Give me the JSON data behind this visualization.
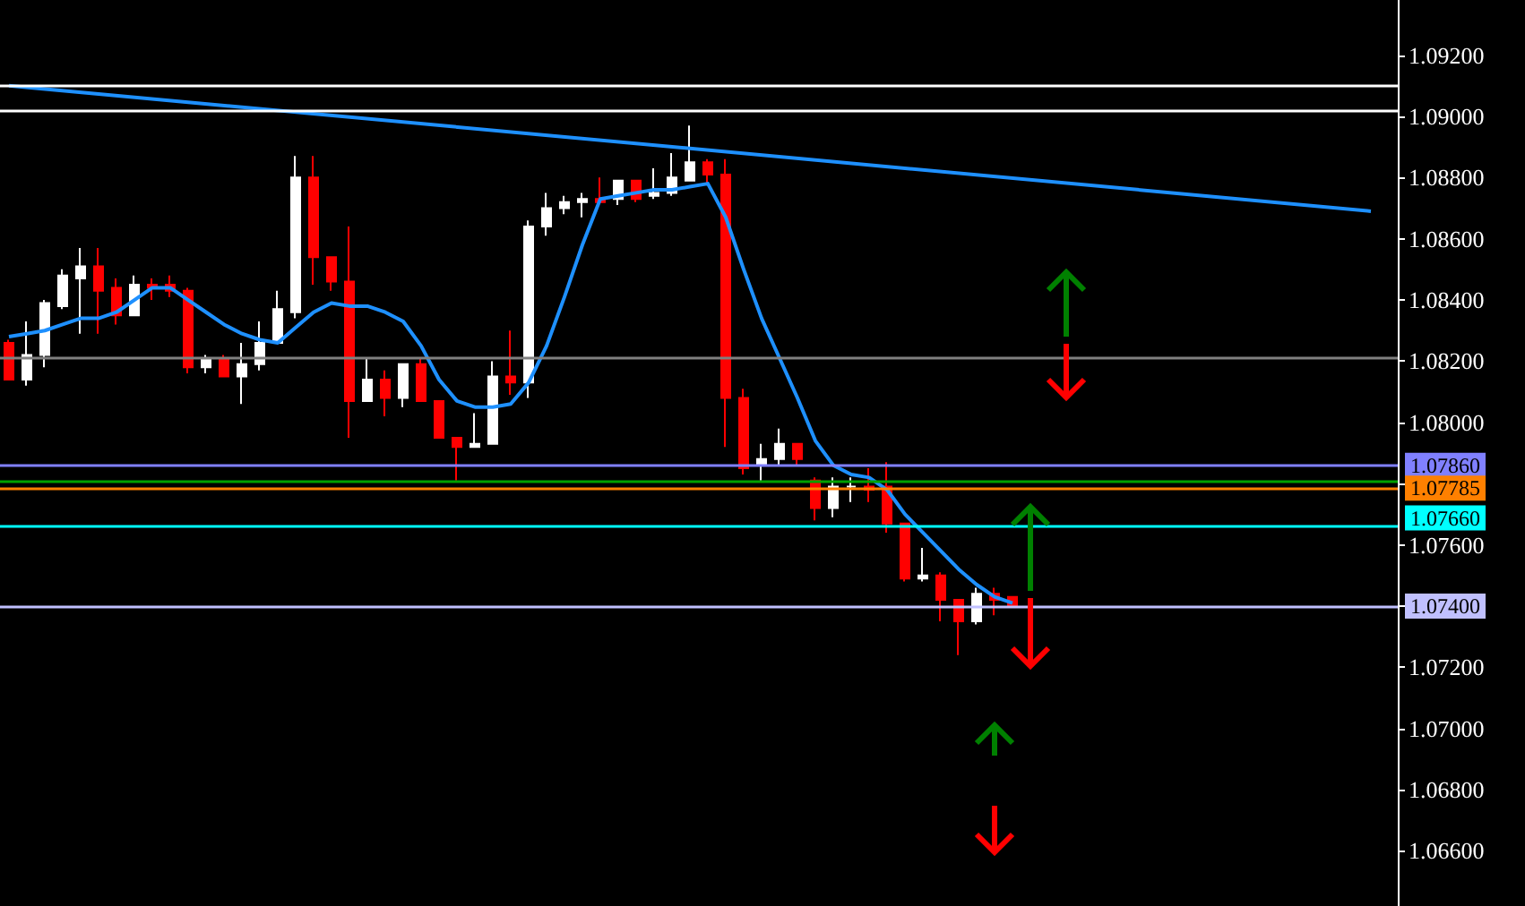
{
  "chart_data": {
    "type": "candlestick",
    "categories": [
      null,
      null,
      null,
      null,
      null,
      null,
      null,
      null,
      null,
      null,
      null,
      null,
      null,
      null,
      null,
      null,
      null,
      null,
      null,
      null,
      null,
      null,
      null,
      null,
      null,
      null,
      null,
      null,
      null,
      null,
      null,
      null,
      null,
      null,
      null,
      null,
      null,
      null,
      null,
      null,
      null,
      null,
      null,
      null,
      null,
      null,
      null,
      null,
      null,
      null,
      null,
      null,
      null,
      null,
      null,
      null,
      null,
      null,
      null,
      null,
      null,
      null,
      null,
      null,
      null,
      null,
      null,
      null,
      null,
      null,
      null,
      null,
      null,
      null,
      null,
      null,
      null,
      null
    ],
    "ylim": [
      1.0642,
      1.0938
    ],
    "yticks": [
      {
        "value": 1.066,
        "label": "1.06600"
      },
      {
        "value": 1.068,
        "label": "1.06800"
      },
      {
        "value": 1.07,
        "label": "1.07000"
      },
      {
        "value": 1.072,
        "label": "1.07200"
      },
      {
        "value": 1.074,
        "label": null
      },
      {
        "value": 1.076,
        "label": "1.07600"
      },
      {
        "value": 1.078,
        "label": null
      },
      {
        "value": 1.08,
        "label": "1.08000"
      },
      {
        "value": 1.082,
        "label": "1.08200"
      },
      {
        "value": 1.084,
        "label": "1.08400"
      },
      {
        "value": 1.086,
        "label": "1.08600"
      },
      {
        "value": 1.088,
        "label": "1.08800"
      },
      {
        "value": 1.09,
        "label": "1.09000"
      },
      {
        "value": 1.092,
        "label": "1.09200"
      }
    ],
    "tick_labels": "y",
    "grid": false,
    "marker": "none",
    "line_style": "solid",
    "series": [
      {
        "colors": [
          "#ff0000",
          "#ffffff",
          "#ffffff",
          "#ffffff",
          "#ffffff",
          "#ff0000",
          "#ff0000",
          "#ffffff",
          "#ff0000",
          "#ff0000",
          "#ff0000",
          "#ffffff",
          "#ff0000",
          "#ffffff",
          "#ffffff",
          "#ffffff",
          "#ffffff",
          "#ff0000",
          "#ff0000",
          "#ff0000",
          "#ffffff",
          "#ff0000",
          "#ffffff",
          "#ff0000",
          "#ff0000",
          "#ff0000",
          "#ffffff",
          "#ffffff",
          "#ff0000",
          "#ffffff",
          "#ffffff",
          "#ffffff",
          "#ffffff",
          "#ff0000",
          "#ffffff",
          "#ff0000",
          "#ffffff",
          "#ffffff",
          "#ffffff",
          "#ff0000",
          "#ff0000",
          "#ff0000",
          "#ffffff",
          "#ffffff",
          "#ff0000",
          "#ff0000",
          "#ffffff",
          "#ffffff",
          "#ff0000",
          "#ff0000",
          "#ff0000",
          "#ffffff",
          "#ff0000",
          "#ff0000",
          "#ffffff",
          "#ff0000",
          "#ff0000",
          null,
          null,
          null,
          null,
          null,
          null,
          null,
          null,
          null,
          null,
          null,
          null,
          null,
          null,
          null,
          null,
          null,
          null,
          null,
          null,
          null
        ],
        "ohlc": [
          [
            1.0826,
            1.0827,
            1.0814,
            1.0814
          ],
          [
            1.0814,
            1.0833,
            1.0812,
            1.0822
          ],
          [
            1.0822,
            1.084,
            1.0818,
            1.0839
          ],
          [
            1.0838,
            1.085,
            1.0837,
            1.0848
          ],
          [
            1.0847,
            1.0857,
            1.0829,
            1.0851
          ],
          [
            1.0851,
            1.0857,
            1.0829,
            1.0843
          ],
          [
            1.0844,
            1.0847,
            1.0832,
            1.0835
          ],
          [
            1.0835,
            1.0848,
            1.0835,
            1.0845
          ],
          [
            1.0845,
            1.0847,
            1.084,
            1.0844
          ],
          [
            1.0845,
            1.0848,
            1.0841,
            1.0843
          ],
          [
            1.0843,
            1.0844,
            1.0816,
            1.0818
          ],
          [
            1.0818,
            1.0822,
            1.0816,
            1.0821
          ],
          [
            1.0821,
            1.0822,
            1.0815,
            1.0815
          ],
          [
            1.0815,
            1.0826,
            1.0806,
            1.0819
          ],
          [
            1.0819,
            1.0833,
            1.0817,
            1.0826
          ],
          [
            1.0826,
            1.0843,
            1.0826,
            1.0837
          ],
          [
            1.0836,
            1.0887,
            1.0834,
            1.088
          ],
          [
            1.088,
            1.0887,
            1.0845,
            1.0854
          ],
          [
            1.0854,
            1.0854,
            1.0843,
            1.0846
          ],
          [
            1.0846,
            1.0864,
            1.0795,
            1.0807
          ],
          [
            1.0807,
            1.0821,
            1.0807,
            1.0814
          ],
          [
            1.0814,
            1.0817,
            1.0802,
            1.0808
          ],
          [
            1.0808,
            1.0819,
            1.0805,
            1.0819
          ],
          [
            1.0819,
            1.0821,
            1.0807,
            1.0807
          ],
          [
            1.0807,
            1.0807,
            1.0795,
            1.0795
          ],
          [
            1.0795,
            1.0795,
            1.0781,
            1.0792
          ],
          [
            1.0792,
            1.0803,
            1.0792,
            1.0793
          ],
          [
            1.0793,
            1.082,
            1.0793,
            1.0815
          ],
          [
            1.0815,
            1.083,
            1.0809,
            1.0813
          ],
          [
            1.0813,
            1.0866,
            1.0808,
            1.0864
          ],
          [
            1.0864,
            1.0875,
            1.0861,
            1.087
          ],
          [
            1.087,
            1.0874,
            1.0868,
            1.0872
          ],
          [
            1.0872,
            1.0875,
            1.0867,
            1.0873
          ],
          [
            1.0873,
            1.088,
            1.0872,
            1.0872
          ],
          [
            1.0873,
            1.0879,
            1.0871,
            1.0879
          ],
          [
            1.0879,
            1.0879,
            1.0872,
            1.0873
          ],
          [
            1.0874,
            1.0883,
            1.0873,
            1.0875
          ],
          [
            1.0875,
            1.0888,
            1.0874,
            1.088
          ],
          [
            1.0879,
            1.0897,
            1.0879,
            1.0885
          ],
          [
            1.0885,
            1.0886,
            1.0878,
            1.0881
          ],
          [
            1.0881,
            1.0886,
            1.0792,
            1.0808
          ],
          [
            1.0808,
            1.0811,
            1.0783,
            1.0785
          ],
          [
            1.0786,
            1.0793,
            1.0781,
            1.0788
          ],
          [
            1.0788,
            1.0798,
            1.0786,
            1.0793
          ],
          [
            1.0793,
            1.0793,
            1.0786,
            1.0788
          ],
          [
            1.0781,
            1.0782,
            1.0768,
            1.0772
          ],
          [
            1.0772,
            1.0782,
            1.0769,
            1.0779
          ],
          [
            1.0779,
            1.0782,
            1.0774,
            1.0779
          ],
          [
            1.0779,
            1.0785,
            1.0774,
            1.0778
          ],
          [
            1.0779,
            1.0787,
            1.0764,
            1.0767
          ],
          [
            1.0767,
            1.0767,
            1.0748,
            1.0749
          ],
          [
            1.0749,
            1.0759,
            1.0748,
            1.075
          ],
          [
            1.075,
            1.0751,
            1.0735,
            1.0742
          ],
          [
            1.0742,
            1.0742,
            1.0724,
            1.0735
          ],
          [
            1.0735,
            1.0746,
            1.0734,
            1.0744
          ],
          [
            1.0744,
            1.0746,
            1.0737,
            1.0742
          ],
          [
            1.0743,
            1.0743,
            1.074,
            1.074
          ],
          null,
          null,
          null,
          null,
          null,
          null,
          null,
          null,
          null,
          null,
          null,
          null,
          null,
          null,
          null,
          null,
          null,
          null,
          null,
          null,
          null
        ]
      },
      {
        "type": "line",
        "color": "#1e90ff",
        "values": [
          1.0828,
          1.0829,
          1.083,
          1.0832,
          1.0834,
          1.0834,
          1.0836,
          1.084,
          1.0844,
          1.0844,
          1.084,
          1.0836,
          1.0832,
          1.0829,
          1.0827,
          1.0826,
          1.0831,
          1.0836,
          1.0839,
          1.0838,
          1.0838,
          1.0836,
          1.0833,
          1.0825,
          1.0814,
          1.0807,
          1.0805,
          1.0805,
          1.0806,
          1.0813,
          1.0825,
          1.0841,
          1.0858,
          1.0873,
          1.0874,
          1.0875,
          1.0876,
          1.0876,
          1.0877,
          1.0878,
          1.0867,
          1.085,
          1.0834,
          1.0821,
          1.0808,
          1.0794,
          1.0786,
          1.0783,
          1.0782,
          1.0778,
          1.077,
          1.0764,
          1.0758,
          1.0752,
          1.0747,
          1.0743,
          1.0741,
          null,
          null,
          null,
          null,
          null,
          null,
          null,
          null,
          null,
          null,
          null,
          null,
          null,
          null,
          null,
          null,
          null,
          null,
          null,
          null,
          null
        ]
      },
      {
        "type": "line",
        "color": "#1e90ff",
        "values": [
          1.091,
          null,
          null,
          null,
          null,
          null,
          null,
          null,
          null,
          null,
          null,
          null,
          null,
          null,
          null,
          null,
          null,
          null,
          null,
          null,
          null,
          null,
          null,
          null,
          null,
          null,
          null,
          null,
          null,
          null,
          null,
          null,
          null,
          null,
          null,
          null,
          null,
          null,
          null,
          null,
          null,
          null,
          null,
          null,
          null,
          null,
          null,
          null,
          null,
          null,
          null,
          null,
          null,
          null,
          null,
          null,
          null,
          null,
          null,
          null,
          null,
          null,
          null,
          null,
          null,
          null,
          null,
          null,
          null,
          null,
          null,
          null,
          null,
          null,
          null,
          null,
          1.0869,
          null
        ]
      }
    ],
    "ref_lines": [
      {
        "axis": "y",
        "value": 1.091,
        "color": "#ffffff"
      },
      {
        "axis": "y",
        "value": 1.0902,
        "color": "#ffffff"
      },
      {
        "axis": "y",
        "value": 1.0821,
        "color": "#808080"
      },
      {
        "axis": "y",
        "value": 1.0786,
        "label": "1.07860",
        "color": "#8080ff"
      },
      {
        "axis": "y",
        "value": 1.0781,
        "color": "#00a000"
      },
      {
        "axis": "y",
        "value": 1.07785,
        "label": "1.07785",
        "color": "#ff8000"
      },
      {
        "axis": "y",
        "value": 1.0766,
        "label": "1.07660",
        "color": "#00ffff"
      },
      {
        "axis": "y",
        "value": 1.074,
        "label": "1.07400",
        "color": "#c0c0ff"
      }
    ]
  }
}
